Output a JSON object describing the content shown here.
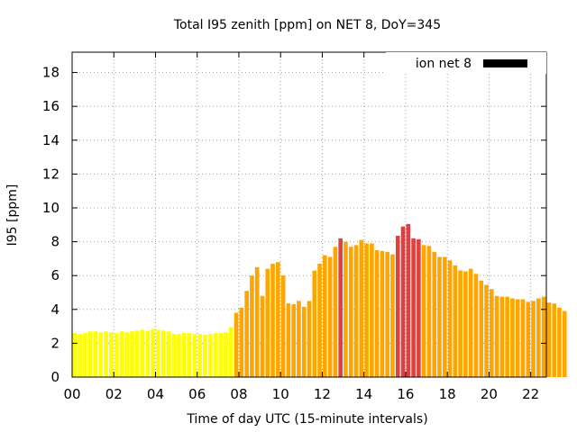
{
  "chart_data": {
    "type": "bar",
    "title": "Total I95 zenith [ppm] on NET 8, DoY=345",
    "xlabel": "Time of day UTC (15-minute intervals)",
    "ylabel": "I95 [ppm]",
    "xlim": [
      0,
      22.75
    ],
    "ylim": [
      0,
      19.2
    ],
    "x_ticks": [
      0,
      2,
      4,
      6,
      8,
      10,
      12,
      14,
      16,
      18,
      20,
      22
    ],
    "x_tick_labels": [
      "00",
      "02",
      "04",
      "06",
      "08",
      "10",
      "12",
      "14",
      "16",
      "18",
      "20",
      "22"
    ],
    "y_ticks": [
      0,
      2,
      4,
      6,
      8,
      10,
      12,
      14,
      16,
      18
    ],
    "y_tick_labels": [
      "0",
      "2",
      "4",
      "6",
      "8",
      "10",
      "12",
      "14",
      "16",
      "18"
    ],
    "grid": true,
    "legend_position": "top-right",
    "series": [
      {
        "name": "ion net 8",
        "legend_color": "#000000",
        "x_start": 0.125,
        "x_step": 0.25,
        "values": [
          2.6,
          2.55,
          2.6,
          2.7,
          2.7,
          2.65,
          2.7,
          2.65,
          2.6,
          2.7,
          2.65,
          2.7,
          2.75,
          2.8,
          2.75,
          2.85,
          2.8,
          2.75,
          2.7,
          2.55,
          2.55,
          2.6,
          2.6,
          2.55,
          2.55,
          2.5,
          2.55,
          2.6,
          2.6,
          2.65,
          2.95,
          3.8,
          4.1,
          5.1,
          6.0,
          6.5,
          4.8,
          6.4,
          6.7,
          6.8,
          6.0,
          4.35,
          4.3,
          4.5,
          4.15,
          4.5,
          6.3,
          6.7,
          7.2,
          7.1,
          7.7,
          8.2,
          8.0,
          7.7,
          7.8,
          8.1,
          7.9,
          7.9,
          7.5,
          7.45,
          7.4,
          7.25,
          8.35,
          8.9,
          9.05,
          8.2,
          8.15,
          7.8,
          7.75,
          7.4,
          7.1,
          7.1,
          6.9,
          6.6,
          6.3,
          6.25,
          6.4,
          6.1,
          5.7,
          5.45,
          5.2,
          4.8,
          4.75,
          4.75,
          4.65,
          4.6,
          4.6,
          4.45,
          4.5,
          4.65,
          4.75,
          4.4,
          4.35,
          4.1,
          3.9
        ]
      }
    ],
    "bar_colors": {
      "low": "#ffff00",
      "medium": "#ffa500",
      "high": "#e04040"
    },
    "thresholds": {
      "medium": 3.5,
      "high": 8.15
    }
  }
}
